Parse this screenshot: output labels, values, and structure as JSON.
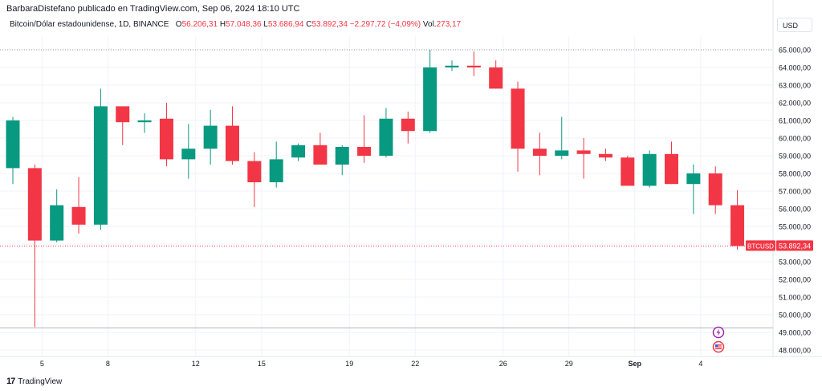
{
  "header": {
    "published": "BarbaraDistefano publicado en TradingView.com, Sep 06, 2024 18:10 UTC"
  },
  "legend": {
    "symbol": "Bitcoin/Dólar estadounidense, 1D, BINANCE",
    "o_label": "O",
    "o_value": "56.206,31",
    "h_label": "H",
    "h_value": "57.048,36",
    "l_label": "L",
    "l_value": "53.686,94",
    "c_label": "C",
    "c_value": "53.892,34",
    "change": "−2.297,72 (−4,09%)",
    "vol_label": "Vol.",
    "vol_value": "273,17"
  },
  "currency_button": "USD",
  "footer": {
    "brand": "TradingView"
  },
  "colors": {
    "up": "#089981",
    "down": "#f23645",
    "grid": "#f0f3fa",
    "axis_text": "#131722"
  },
  "chart_data": {
    "type": "candlestick",
    "ylim": [
      47500,
      65600
    ],
    "y_ticks": [
      48000,
      49000,
      50000,
      51000,
      52000,
      53000,
      54000,
      55000,
      56000,
      57000,
      58000,
      59000,
      60000,
      61000,
      62000,
      63000,
      64000,
      65000
    ],
    "y_tick_labels": [
      "48.000,00",
      "49.000,00",
      "50.000,00",
      "51.000,00",
      "52.000,00",
      "53.000,00",
      "54.000,00",
      "55.000,00",
      "56.000,00",
      "57.000,00",
      "58.000,00",
      "59.000,00",
      "60.000,00",
      "61.000,00",
      "62.000,00",
      "63.000,00",
      "64.000,00",
      "65.000,00"
    ],
    "x_tick_labels": [
      {
        "label": "5",
        "index": 1
      },
      {
        "label": "8",
        "index": 4
      },
      {
        "label": "12",
        "index": 8
      },
      {
        "label": "15",
        "index": 11
      },
      {
        "label": "19",
        "index": 15
      },
      {
        "label": "22",
        "index": 18
      },
      {
        "label": "26",
        "index": 22
      },
      {
        "label": "29",
        "index": 25
      },
      {
        "label": "Sep",
        "index": 28
      },
      {
        "label": "4",
        "index": 31
      }
    ],
    "candles": [
      {
        "o": 58300,
        "h": 61200,
        "l": 57400,
        "c": 61000
      },
      {
        "o": 58300,
        "h": 58500,
        "l": 49300,
        "c": 54200
      },
      {
        "o": 54200,
        "h": 57100,
        "l": 54100,
        "c": 56200
      },
      {
        "o": 56100,
        "h": 57800,
        "l": 54600,
        "c": 55100
      },
      {
        "o": 55100,
        "h": 62800,
        "l": 54800,
        "c": 61800
      },
      {
        "o": 61800,
        "h": 61800,
        "l": 59600,
        "c": 60900
      },
      {
        "o": 60900,
        "h": 61400,
        "l": 60300,
        "c": 61000
      },
      {
        "o": 61100,
        "h": 62000,
        "l": 58400,
        "c": 58800
      },
      {
        "o": 58800,
        "h": 60800,
        "l": 57700,
        "c": 59400
      },
      {
        "o": 59400,
        "h": 61600,
        "l": 58500,
        "c": 60700
      },
      {
        "o": 60700,
        "h": 61800,
        "l": 58500,
        "c": 58700
      },
      {
        "o": 58700,
        "h": 59200,
        "l": 56100,
        "c": 57500
      },
      {
        "o": 57500,
        "h": 59800,
        "l": 57200,
        "c": 58800
      },
      {
        "o": 58900,
        "h": 59700,
        "l": 58700,
        "c": 59600
      },
      {
        "o": 59600,
        "h": 60300,
        "l": 58500,
        "c": 58500
      },
      {
        "o": 58500,
        "h": 59600,
        "l": 57900,
        "c": 59500
      },
      {
        "o": 59500,
        "h": 61300,
        "l": 58600,
        "c": 59000
      },
      {
        "o": 59000,
        "h": 61700,
        "l": 58900,
        "c": 61100
      },
      {
        "o": 61100,
        "h": 61500,
        "l": 59700,
        "c": 60400
      },
      {
        "o": 60400,
        "h": 65000,
        "l": 60300,
        "c": 64000
      },
      {
        "o": 64000,
        "h": 64400,
        "l": 63800,
        "c": 64100
      },
      {
        "o": 64100,
        "h": 64900,
        "l": 63500,
        "c": 64000
      },
      {
        "o": 64000,
        "h": 64400,
        "l": 62800,
        "c": 62800
      },
      {
        "o": 62800,
        "h": 63200,
        "l": 58100,
        "c": 59400
      },
      {
        "o": 59400,
        "h": 60300,
        "l": 57900,
        "c": 59000
      },
      {
        "o": 59000,
        "h": 61200,
        "l": 58800,
        "c": 59300
      },
      {
        "o": 59300,
        "h": 60000,
        "l": 57700,
        "c": 59100
      },
      {
        "o": 59100,
        "h": 59400,
        "l": 58700,
        "c": 58900
      },
      {
        "o": 58900,
        "h": 59000,
        "l": 57400,
        "c": 57300
      },
      {
        "o": 57300,
        "h": 59300,
        "l": 57200,
        "c": 59100
      },
      {
        "o": 59100,
        "h": 59800,
        "l": 57400,
        "c": 57400
      },
      {
        "o": 57400,
        "h": 58500,
        "l": 55700,
        "c": 58000
      },
      {
        "o": 58000,
        "h": 58400,
        "l": 55700,
        "c": 56200
      },
      {
        "o": 56200,
        "h": 57048,
        "l": 53687,
        "c": 53892
      }
    ],
    "price_marker": {
      "symbol": "BTCUSD",
      "value": 53892.34,
      "value_label": "53.892,34"
    },
    "high_line": 65000,
    "low_line": 49300
  }
}
